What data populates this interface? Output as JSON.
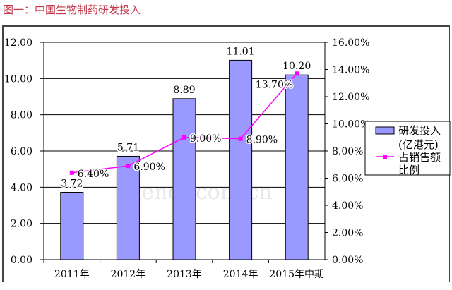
{
  "title": "图一：中国生物制药研发投入",
  "watermark": "menet.com.cn",
  "chart_data": {
    "type": "bar+line",
    "categories": [
      "2011年",
      "2012年",
      "2013年",
      "2014年",
      "2015年中期"
    ],
    "series": [
      {
        "name": "研发投入(亿港元)",
        "type": "bar",
        "axis": "left",
        "values": [
          3.72,
          5.71,
          8.89,
          11.01,
          10.2
        ],
        "labels": [
          "3.72",
          "5.71",
          "8.89",
          "11.01",
          "10.20"
        ],
        "color": "#9999ff"
      },
      {
        "name": "占销售额比例",
        "type": "line",
        "axis": "right",
        "values": [
          6.4,
          6.9,
          9.0,
          8.9,
          13.7
        ],
        "labels": [
          "6.40%",
          "6.90%",
          "9.00%",
          "8.90%",
          "13.70%"
        ],
        "color": "#ff00ff"
      }
    ],
    "y_left": {
      "range": [
        0,
        12
      ],
      "ticks": [
        "0.00",
        "2.00",
        "4.00",
        "6.00",
        "8.00",
        "10.00",
        "12.00"
      ]
    },
    "y_right": {
      "range": [
        0,
        16
      ],
      "ticks": [
        "0.00%",
        "2.00%",
        "4.00%",
        "6.00%",
        "8.00%",
        "10.00%",
        "12.00%",
        "14.00%",
        "16.00%"
      ]
    },
    "grid": "horizontal",
    "legend": {
      "placement": "right",
      "bar_label_1": "研发投入",
      "bar_label_2": "(亿港元)",
      "line_label_1": "占销售额",
      "line_label_2": "比例"
    }
  }
}
